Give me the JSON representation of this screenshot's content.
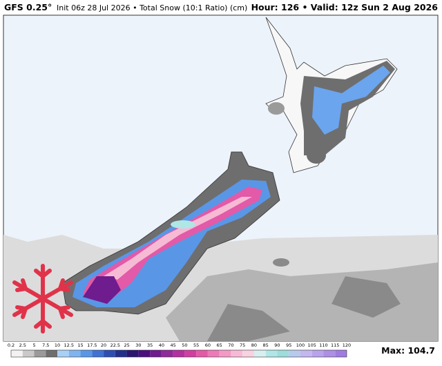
{
  "header": {
    "model": "GFS 0.25°",
    "run": "Init 06z 28 Jul 2026 • Total Snow (10:1 Ratio) (cm)",
    "valid": "Hour: 126 • Valid: 12z Sun 2 Aug 2026"
  },
  "legend": {
    "labels": [
      0.2,
      2.5,
      5,
      7.5,
      10,
      12.5,
      15,
      17.5,
      20,
      22.5,
      25,
      30,
      35,
      40,
      45,
      50,
      55,
      60,
      65,
      70,
      75,
      80,
      85,
      90,
      95,
      100,
      105,
      110,
      115,
      120
    ],
    "colors": [
      "#f2f2f2",
      "#c9c9c9",
      "#9a9a9a",
      "#6e6e6e",
      "#a9d0f5",
      "#7fb4ef",
      "#5a96e6",
      "#3f72d2",
      "#2d4fb3",
      "#23308a",
      "#2b1670",
      "#4a0f7c",
      "#6e1c8e",
      "#8e2a9a",
      "#b3309f",
      "#d13e9f",
      "#e25aa8",
      "#ec7ab7",
      "#f29ac4",
      "#f7bad4",
      "#f8d2e1",
      "#d9eef0",
      "#b0e6e6",
      "#9fdcdc",
      "#b8c9ee",
      "#c4b6ee",
      "#b9a3ea",
      "#ad8fe6",
      "#a07ce0"
    ]
  },
  "max": "Max: 104.7"
}
